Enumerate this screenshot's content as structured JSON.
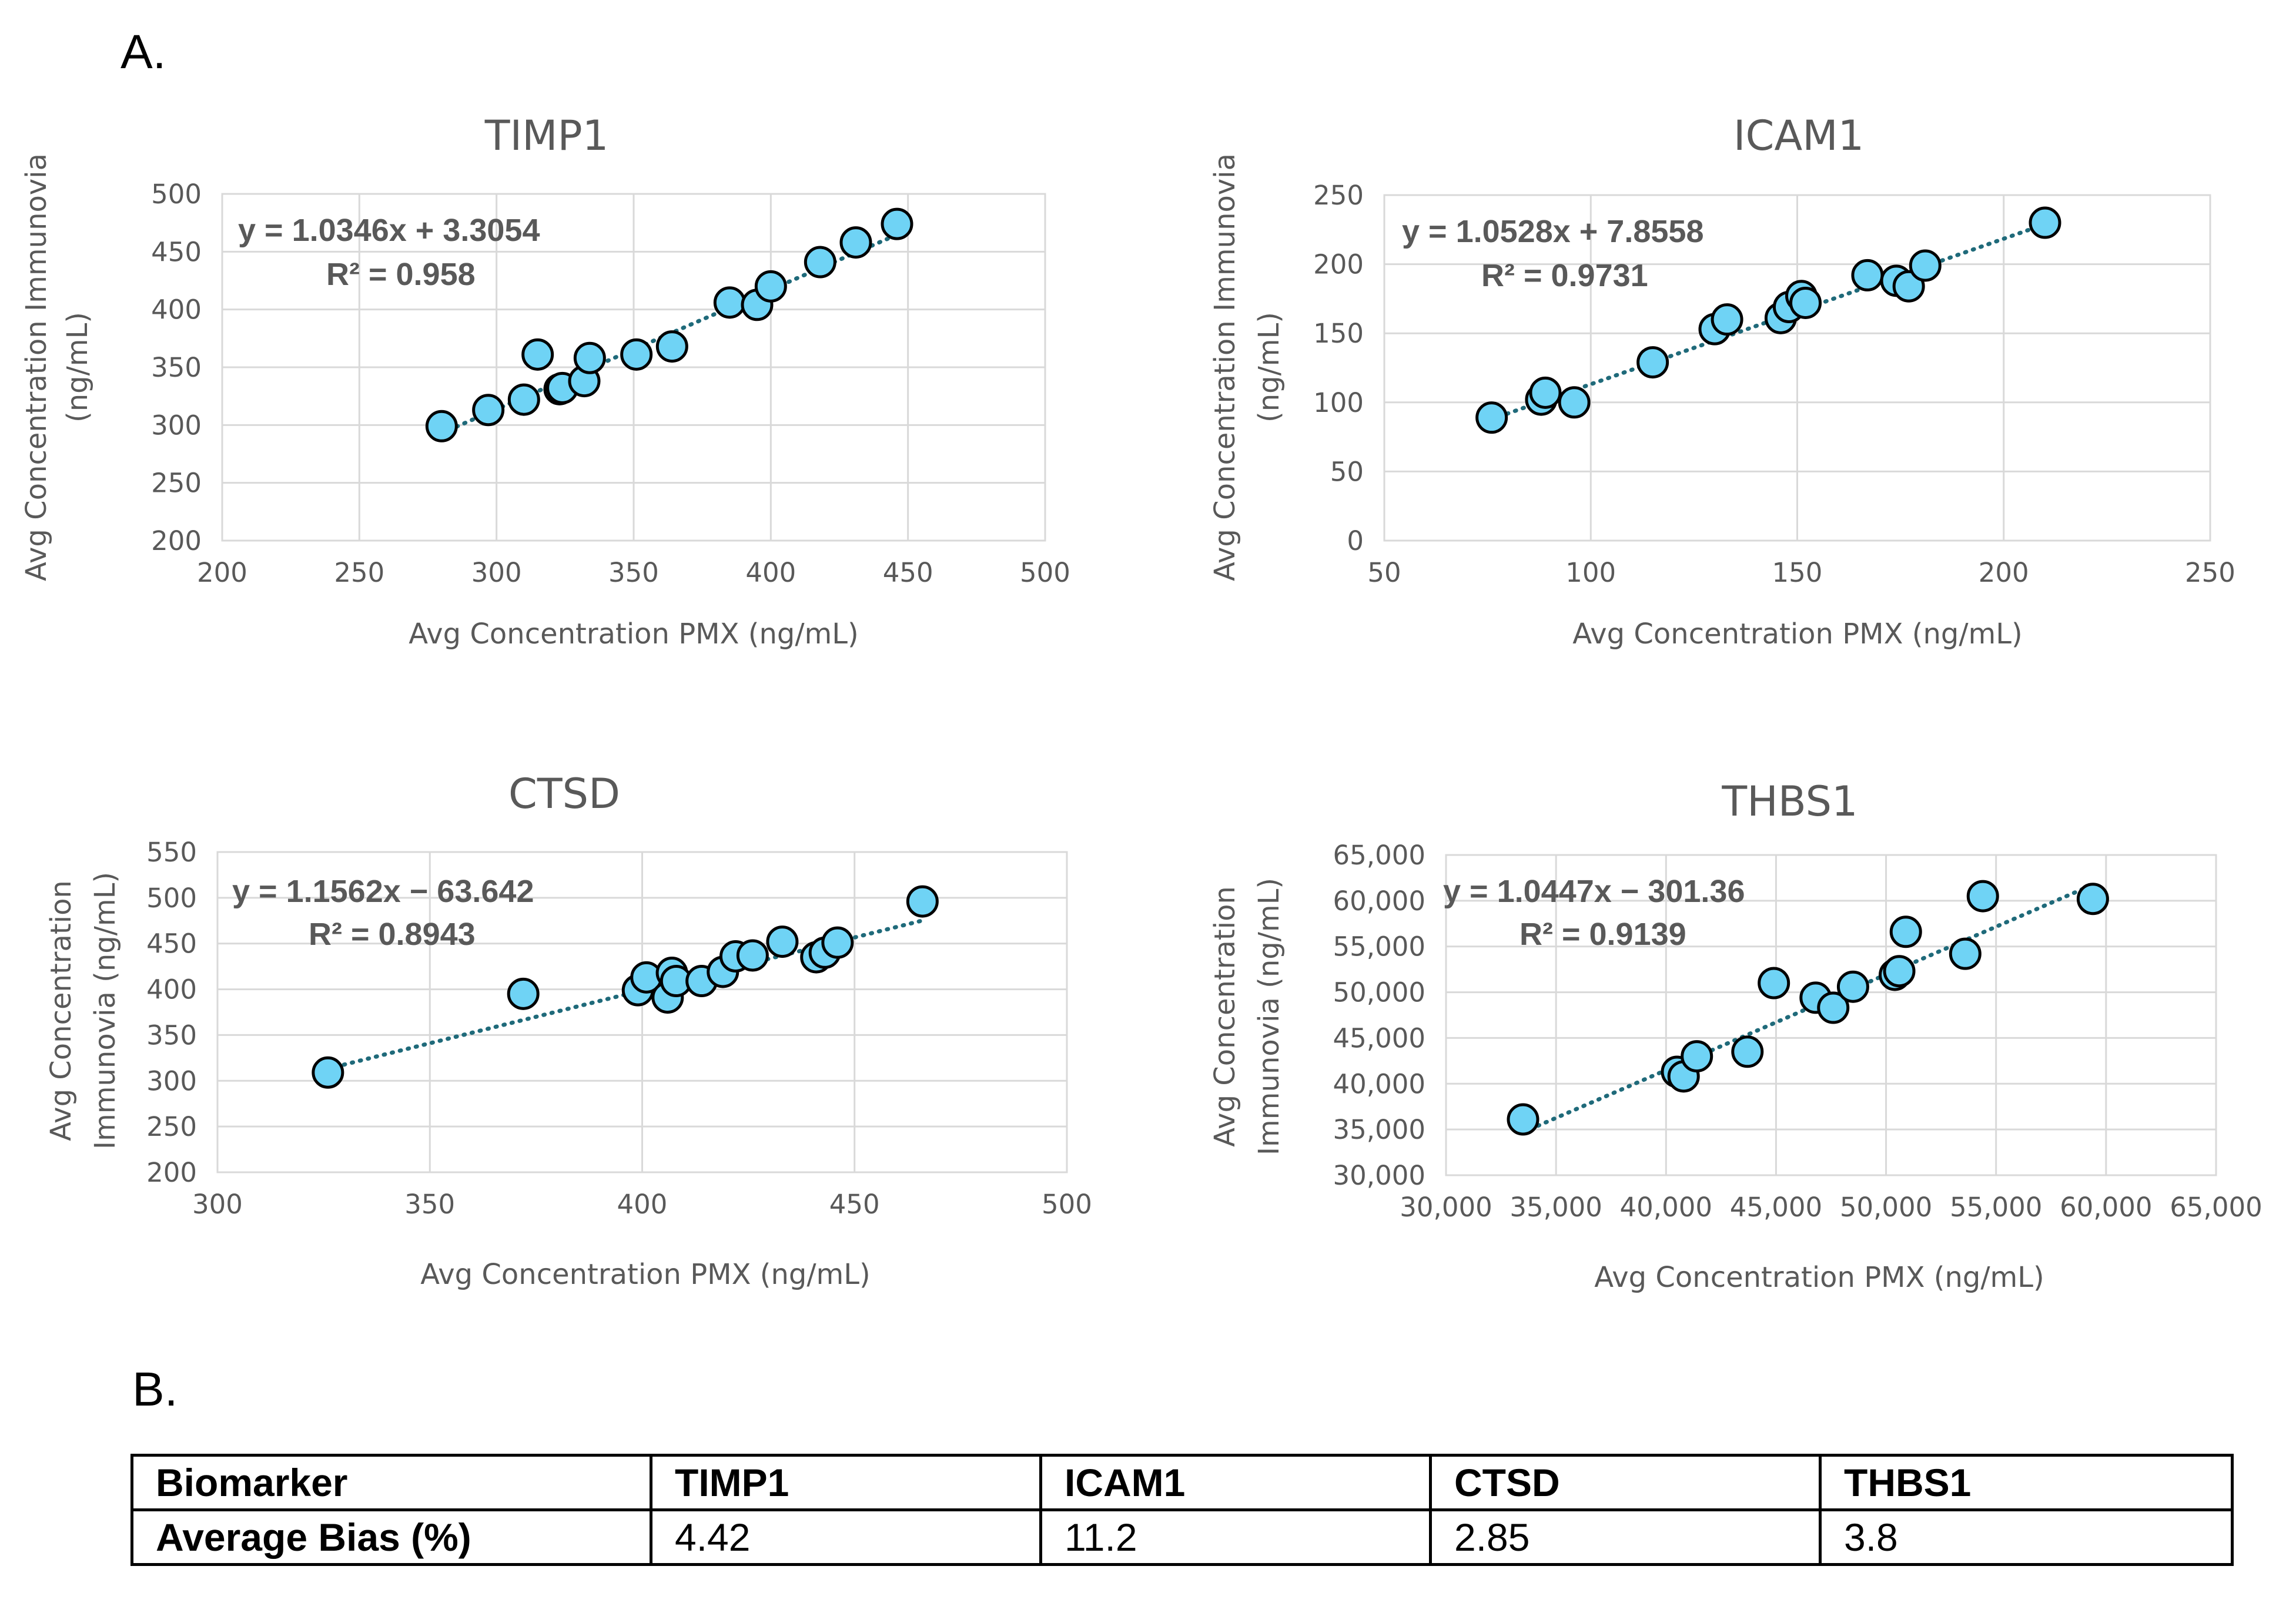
{
  "panel_labels": {
    "a": "A.",
    "b": "B."
  },
  "chart_data": [
    {
      "type": "scatter",
      "title": "TIMP1",
      "xlabel": "Avg Concentration PMX (ng/mL)",
      "ylabel_lines": [
        "Avg Concentration Immunovia",
        "(ng/mL)"
      ],
      "xlim": [
        200,
        500
      ],
      "ylim": [
        200,
        500
      ],
      "xticks": [
        200,
        250,
        300,
        350,
        400,
        450,
        500
      ],
      "yticks": [
        200,
        250,
        300,
        350,
        400,
        450,
        500
      ],
      "xtick_labels": [
        "200",
        "250",
        "300",
        "350",
        "400",
        "450",
        "500"
      ],
      "ytick_labels": [
        "200",
        "250",
        "300",
        "350",
        "400",
        "450",
        "500"
      ],
      "grid": true,
      "trendline": {
        "slope": 1.0346,
        "intercept": 3.3054,
        "x_range": [
          280,
          446
        ]
      },
      "equation": "y = 1.0346x + 3.3054",
      "r2": "R² = 0.958",
      "x": [
        280,
        297,
        310,
        315,
        323,
        324,
        332,
        334,
        351,
        364,
        385,
        395,
        400,
        418,
        431,
        446
      ],
      "y": [
        299,
        313,
        322,
        361,
        331,
        332,
        338,
        358,
        361,
        368,
        406,
        404,
        420,
        441,
        458,
        474
      ]
    },
    {
      "type": "scatter",
      "title": "ICAM1",
      "xlabel": "Avg Concentration PMX (ng/mL)",
      "ylabel_lines": [
        "Avg Concentration Immunovia",
        "(ng/mL)"
      ],
      "xlim": [
        50,
        250
      ],
      "ylim": [
        0,
        250
      ],
      "xticks": [
        50,
        100,
        150,
        200,
        250
      ],
      "yticks": [
        0,
        50,
        100,
        150,
        200,
        250
      ],
      "xtick_labels": [
        "50",
        "100",
        "150",
        "200",
        "250"
      ],
      "ytick_labels": [
        "0",
        "50",
        "100",
        "150",
        "200",
        "250"
      ],
      "grid": true,
      "trendline": {
        "slope": 1.0528,
        "intercept": 7.8558,
        "x_range": [
          76,
          210
        ]
      },
      "equation": "y = 1.0528x + 7.8558",
      "r2": "R² = 0.9731",
      "x": [
        76,
        88,
        89,
        96,
        115,
        130,
        133,
        146,
        148,
        151,
        152,
        167,
        174,
        177,
        181,
        210
      ],
      "y": [
        89,
        102,
        107,
        100,
        129,
        153,
        160,
        161,
        169,
        177,
        172,
        192,
        188,
        184,
        199,
        230
      ]
    },
    {
      "type": "scatter",
      "title": "CTSD",
      "xlabel": "Avg Concentration PMX (ng/mL)",
      "ylabel_lines": [
        "Avg Concentration",
        "Immunovia (ng/mL)"
      ],
      "xlim": [
        300,
        500
      ],
      "ylim": [
        200,
        550
      ],
      "xticks": [
        300,
        350,
        400,
        450,
        500
      ],
      "yticks": [
        200,
        250,
        300,
        350,
        400,
        450,
        500,
        550
      ],
      "xtick_labels": [
        "300",
        "350",
        "400",
        "450",
        "500"
      ],
      "ytick_labels": [
        "200",
        "250",
        "300",
        "350",
        "400",
        "450",
        "500",
        "550"
      ],
      "grid": true,
      "trendline": {
        "slope": 1.1562,
        "intercept": -63.642,
        "x_range": [
          326,
          466
        ]
      },
      "equation": "y = 1.1562x − 63.642",
      "r2": "R² = 0.8943",
      "x": [
        326,
        372,
        399,
        401,
        406,
        407,
        408,
        414,
        419,
        422,
        426,
        433,
        441,
        443,
        446,
        466
      ],
      "y": [
        309,
        395,
        399,
        413,
        391,
        418,
        409,
        409,
        419,
        436,
        437,
        452,
        435,
        440,
        451,
        496
      ]
    },
    {
      "type": "scatter",
      "title": "THBS1",
      "xlabel": "Avg Concentration PMX (ng/mL)",
      "ylabel_lines": [
        "Avg Concentration",
        "Immunovia (ng/mL)"
      ],
      "xlim": [
        30000,
        65000
      ],
      "ylim": [
        30000,
        65000
      ],
      "xticks": [
        30000,
        35000,
        40000,
        45000,
        50000,
        55000,
        60000,
        65000
      ],
      "yticks": [
        30000,
        35000,
        40000,
        45000,
        50000,
        55000,
        60000,
        65000
      ],
      "xtick_labels": [
        "30,000",
        "35,000",
        "40,000",
        "45,000",
        "50,000",
        "55,000",
        "60,000",
        "65,000"
      ],
      "ytick_labels": [
        "30,000",
        "35,000",
        "40,000",
        "45,000",
        "50,000",
        "55,000",
        "60,000",
        "65,000"
      ],
      "grid": true,
      "trendline": {
        "slope": 1.0447,
        "intercept": -301.36,
        "x_range": [
          33500,
          59400
        ]
      },
      "equation": "y = 1.0447x − 301.36",
      "r2": "R² = 0.9139",
      "x": [
        33500,
        40500,
        40800,
        41400,
        43700,
        44900,
        46800,
        47600,
        48500,
        50400,
        50600,
        50900,
        53600,
        54400,
        59400
      ],
      "y": [
        36100,
        41300,
        40800,
        43000,
        43500,
        51000,
        49400,
        48300,
        50600,
        51900,
        52300,
        56600,
        54200,
        60500,
        60200
      ]
    }
  ],
  "table": {
    "headers": [
      "Biomarker",
      "TIMP1",
      "ICAM1",
      "CTSD",
      "THBS1"
    ],
    "rows": [
      [
        "Average Bias (%)",
        "4.42",
        "11.2",
        "2.85",
        "3.8"
      ]
    ]
  }
}
